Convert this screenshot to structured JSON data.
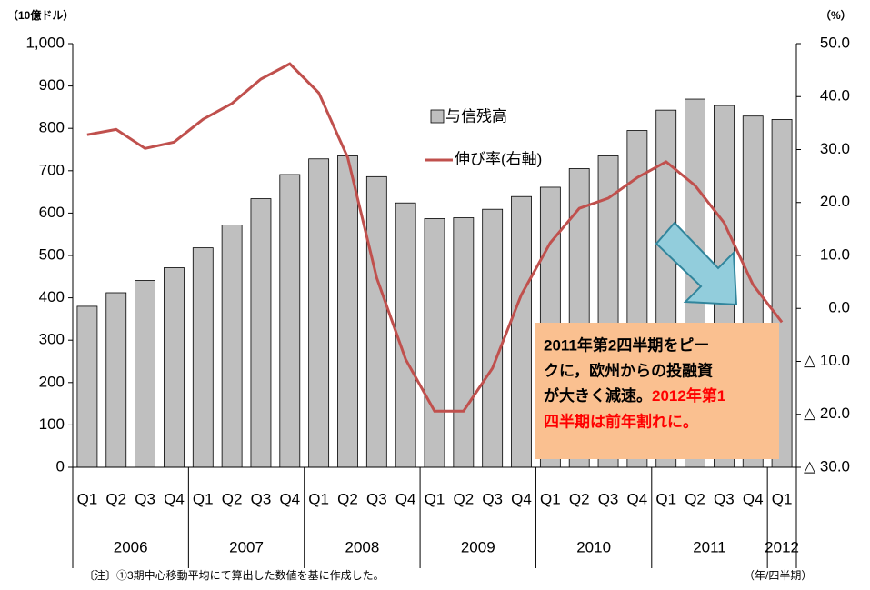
{
  "chart_data": {
    "type": "bar_line",
    "y_unit": "（10億ドル）",
    "y2_unit": "（%）",
    "x_unit": "（年/四半期）",
    "note": "〔注〕①3期中心移動平均にて算出した数値を基に作成した。",
    "categories": [
      "Q1",
      "Q2",
      "Q3",
      "Q4",
      "Q1",
      "Q2",
      "Q3",
      "Q4",
      "Q1",
      "Q2",
      "Q3",
      "Q4",
      "Q1",
      "Q2",
      "Q3",
      "Q4",
      "Q1",
      "Q2",
      "Q3",
      "Q4",
      "Q1",
      "Q2",
      "Q3",
      "Q4",
      "Q1"
    ],
    "years": [
      "2006",
      "2007",
      "2008",
      "2009",
      "2010",
      "2011",
      "2012"
    ],
    "series": [
      {
        "name": "与信残高",
        "color": "#bfbfbf",
        "values": [
          380,
          412,
          441,
          471,
          518,
          572,
          634,
          691,
          728,
          735,
          686,
          624,
          587,
          589,
          609,
          639,
          661,
          705,
          735,
          795,
          843,
          869,
          854,
          829,
          821
        ]
      },
      {
        "name": "伸び率(右軸)",
        "color": "#c0504d",
        "axis": "y2",
        "values": [
          32.8,
          33.8,
          30.2,
          31.4,
          35.7,
          38.7,
          43.3,
          46.2,
          40.7,
          28.5,
          5.8,
          -9.6,
          -19.4,
          -19.4,
          -11.3,
          2.6,
          12.4,
          18.9,
          20.8,
          24.7,
          27.7,
          23.2,
          16.2,
          4.5,
          -2.6
        ]
      }
    ],
    "ylim": [
      0,
      1000
    ],
    "yticks": [
      0,
      100,
      200,
      300,
      400,
      500,
      600,
      700,
      800,
      900,
      {
        "value": 1000,
        "label": "1,000"
      }
    ],
    "y2lim": [
      -30,
      50
    ],
    "y2ticks": [
      {
        "value": -30,
        "label": "△ 30.0"
      },
      {
        "value": -20,
        "label": "△ 20.0"
      },
      {
        "value": -10,
        "label": "△ 10.0"
      },
      {
        "value": 0,
        "label": "0.0"
      },
      {
        "value": 10,
        "label": "10.0"
      },
      {
        "value": 20,
        "label": "20.0"
      },
      {
        "value": 30,
        "label": "30.0"
      },
      {
        "value": 40,
        "label": "40.0"
      },
      {
        "value": 50,
        "label": "50.0"
      }
    ],
    "annotation": [
      "2011年第2四半期をピー",
      "クに，欧州からの投融資",
      "が大きく減速。",
      "2012年第1",
      "四半期は前年割れに。"
    ]
  }
}
